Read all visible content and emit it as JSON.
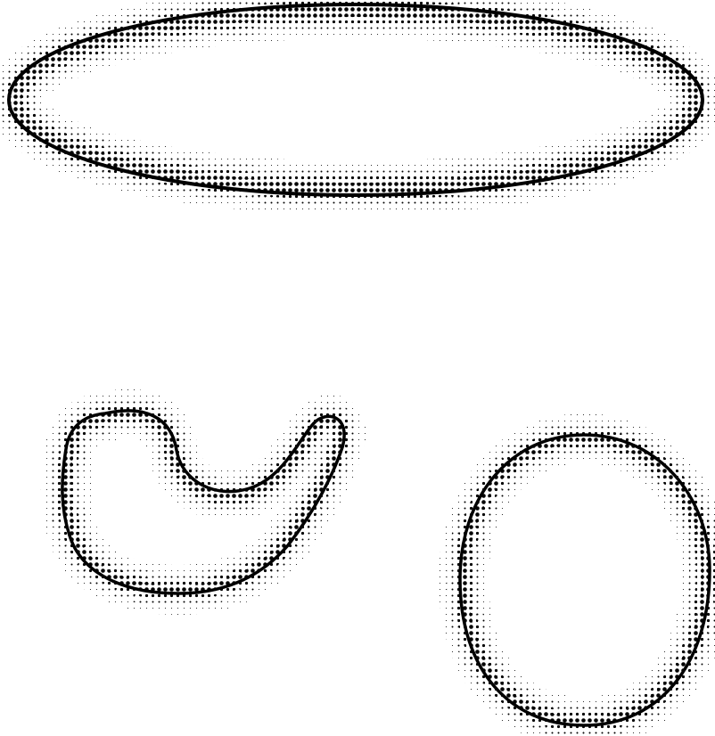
{
  "canvas": {
    "background": "#ffffff"
  },
  "style": {
    "ink_color": "#000000",
    "pattern": "halftone-dot-gradient-outline"
  },
  "shapes": [
    {
      "name": "elongated-ellipse",
      "kind": "horizontal ellipse outline"
    },
    {
      "name": "curled-blob",
      "kind": "comma / hook shaped outline"
    },
    {
      "name": "rounded-oval",
      "kind": "upright oval outline"
    }
  ]
}
